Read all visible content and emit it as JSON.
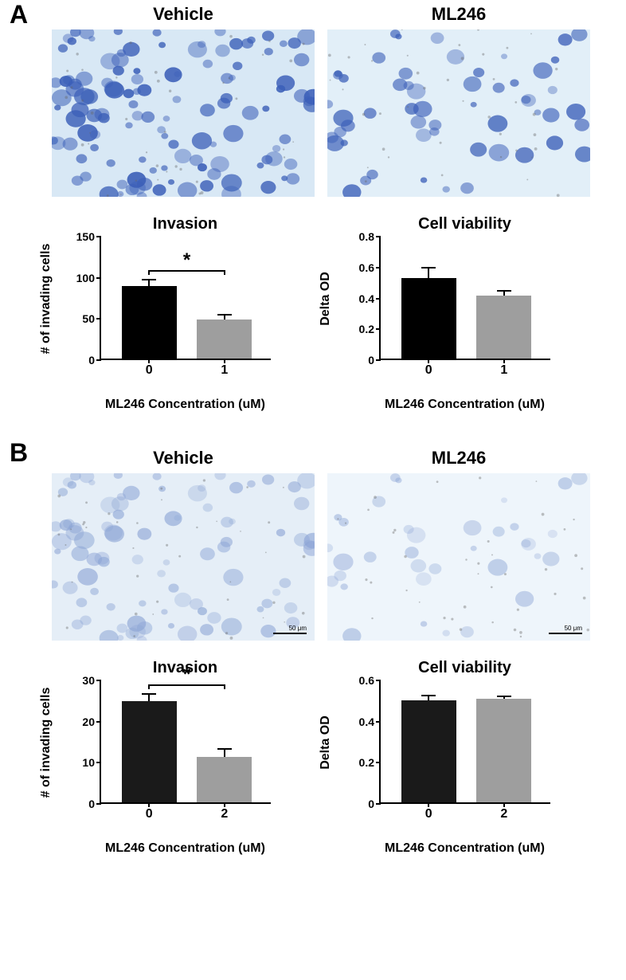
{
  "panelA": {
    "label": "A",
    "images": {
      "left_title": "Vehicle",
      "right_title": "ML246",
      "bg_left": "#d8e8f5",
      "bg_right": "#e2eff8",
      "cell_color": "#3b5fb8"
    },
    "invasion_chart": {
      "title": "Invasion",
      "ylabel": "# of invading cells",
      "xlabel": "ML246  Concentration (uM)",
      "ylim": [
        0,
        150
      ],
      "yticks": [
        0,
        50,
        100,
        150
      ],
      "xticks": [
        "0",
        "1"
      ],
      "bars": [
        {
          "value": 88,
          "error": 8,
          "color": "#000000"
        },
        {
          "value": 47,
          "error": 6,
          "color": "#9e9e9e"
        }
      ],
      "significance": "*"
    },
    "viability_chart": {
      "title": "Cell viability",
      "ylabel": "Delta OD",
      "xlabel": "ML246  Concentration (uM)",
      "ylim": [
        0,
        0.8
      ],
      "yticks": [
        0.0,
        0.2,
        0.4,
        0.6,
        0.8
      ],
      "xticks": [
        "0",
        "1"
      ],
      "bars": [
        {
          "value": 0.52,
          "error": 0.07,
          "color": "#000000"
        },
        {
          "value": 0.41,
          "error": 0.03,
          "color": "#9e9e9e"
        }
      ]
    }
  },
  "panelB": {
    "label": "B",
    "images": {
      "left_title": "Vehicle",
      "right_title": "ML246",
      "bg_left": "#e5eef7",
      "bg_right": "#eef5fb",
      "cell_color": "#8aa3d4",
      "scale_label": "50 μm"
    },
    "invasion_chart": {
      "title": "Invasion",
      "ylabel": "# of invading cells",
      "xlabel": "ML246 Concentration (uM)",
      "ylim": [
        0,
        30
      ],
      "yticks": [
        0,
        10,
        20,
        30
      ],
      "xticks": [
        "0",
        "2"
      ],
      "bars": [
        {
          "value": 24.5,
          "error": 1.8,
          "color": "#1a1a1a"
        },
        {
          "value": 11,
          "error": 2,
          "color": "#9e9e9e"
        }
      ],
      "significance": "*"
    },
    "viability_chart": {
      "title": "Cell viability",
      "ylabel": "Delta OD",
      "xlabel": "ML246 Concentration (uM)",
      "ylim": [
        0,
        0.6
      ],
      "yticks": [
        0.0,
        0.2,
        0.4,
        0.6
      ],
      "xticks": [
        "0",
        "2"
      ],
      "bars": [
        {
          "value": 0.495,
          "error": 0.025,
          "color": "#1a1a1a"
        },
        {
          "value": 0.505,
          "error": 0.008,
          "color": "#9e9e9e"
        }
      ]
    }
  }
}
